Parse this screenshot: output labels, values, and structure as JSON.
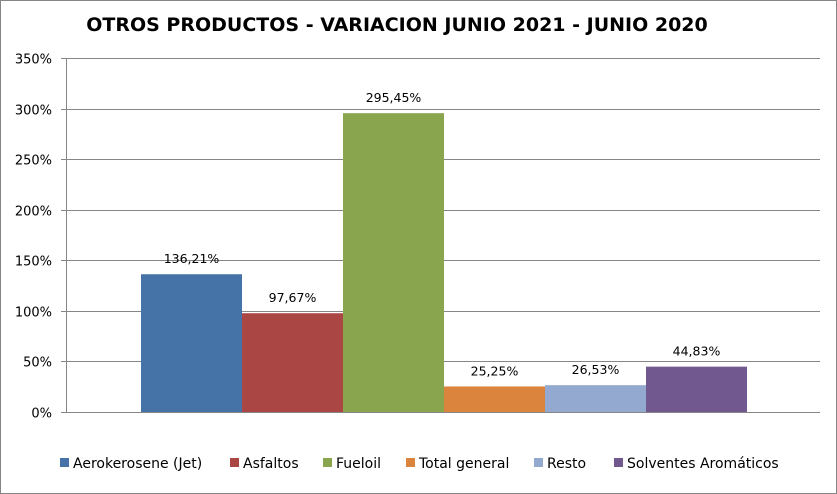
{
  "chart_data": {
    "type": "bar",
    "title": "OTROS PRODUCTOS - VARIACION JUNIO 2021 - JUNIO 2020",
    "xlabel": "",
    "ylabel": "",
    "ylim": [
      0,
      350
    ],
    "yticks": [
      0,
      50,
      100,
      150,
      200,
      250,
      300,
      350
    ],
    "ytick_labels": [
      "0%",
      "50%",
      "100%",
      "150%",
      "200%",
      "250%",
      "300%",
      "350%"
    ],
    "grid": true,
    "legend_position": "bottom",
    "series": [
      {
        "name": "Aerokerosene (Jet)",
        "value": 136.21,
        "label": "136,21%",
        "color": "#4572A7"
      },
      {
        "name": "Asfaltos",
        "value": 97.67,
        "label": "97,67%",
        "color": "#AA4643"
      },
      {
        "name": "Fueloil",
        "value": 295.45,
        "label": "295,45%",
        "color": "#89A54E"
      },
      {
        "name": "Total general",
        "value": 25.25,
        "label": "25,25%",
        "color": "#DB843D"
      },
      {
        "name": "Resto",
        "value": 26.53,
        "label": "26,53%",
        "color": "#93A9CF"
      },
      {
        "name": "Solventes Aromáticos",
        "value": 44.83,
        "label": "44,83%",
        "color": "#71588F"
      }
    ]
  }
}
